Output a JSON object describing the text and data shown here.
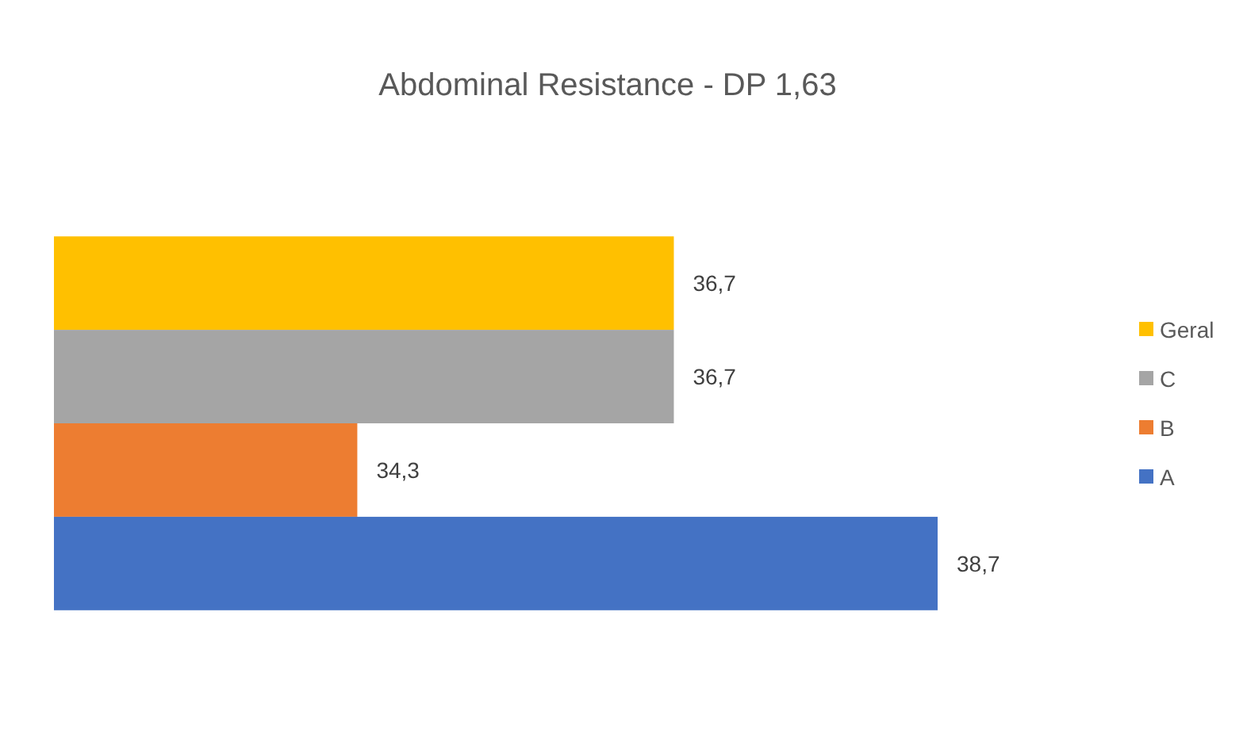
{
  "chart_data": {
    "type": "bar",
    "orientation": "horizontal",
    "title": "Abdominal Resistance - DP 1,63",
    "categories": [
      null
    ],
    "series": [
      {
        "name": "Geral",
        "color": "#ffc000",
        "values": [
          36.7
        ],
        "value_labels": [
          "36,7"
        ]
      },
      {
        "name": "C",
        "color": "#a5a5a5",
        "values": [
          36.7
        ],
        "value_labels": [
          "36,7"
        ]
      },
      {
        "name": "B",
        "color": "#ed7d31",
        "values": [
          34.3
        ],
        "value_labels": [
          "34,3"
        ]
      },
      {
        "name": "A",
        "color": "#4472c4",
        "values": [
          38.7
        ],
        "value_labels": [
          "38,7"
        ]
      }
    ],
    "xlim": [
      32,
      38.7
    ],
    "legend": "right"
  }
}
